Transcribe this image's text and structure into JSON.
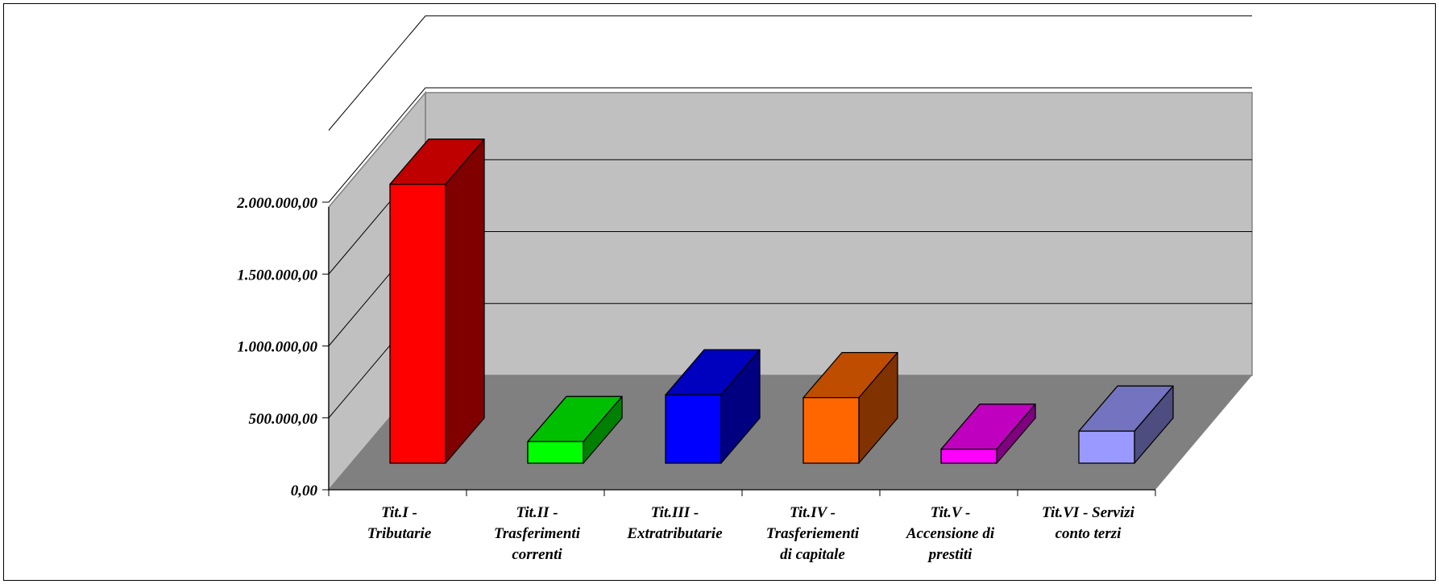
{
  "chart_data": {
    "type": "bar",
    "three_d": true,
    "categories": [
      [
        "Tit.I -",
        "Tributarie"
      ],
      [
        "Tit.II -",
        "Trasferimenti",
        "correnti"
      ],
      [
        "Tit.III -",
        "Extratributarie"
      ],
      [
        "Tit.IV -",
        "Trasferiementi",
        "di capitale"
      ],
      [
        "Tit.V -",
        "Accensione di",
        "prestiti"
      ],
      [
        "Tit.VI - Servizi",
        "conto terzi"
      ]
    ],
    "values": [
      2000000,
      155000,
      490000,
      470000,
      100000,
      230000
    ],
    "colors": [
      "#ff0000",
      "#00ff00",
      "#0000ff",
      "#ff6600",
      "#ff00ff",
      "#9999ff"
    ],
    "ylim": [
      0,
      2000000
    ],
    "y_ticks": [
      "0,00",
      "500.000,00",
      "1.000.000,00",
      "1.500.000,00",
      "2.000.000,00"
    ],
    "grid": true,
    "legend": "none",
    "wall_color": "#c0c0c0",
    "floor_color": "#808080"
  }
}
